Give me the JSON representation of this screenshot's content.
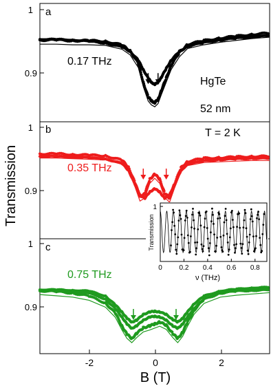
{
  "figure": {
    "ylabel": "Transmission",
    "xlabel": "B (T)",
    "x_ticks": [
      "-2",
      "0",
      "2"
    ],
    "y_tick_labels": {
      "one": "1",
      "point9": "0.9"
    }
  },
  "panels": [
    {
      "letter": "a",
      "freq_label": "0.17 THz",
      "color": "#000000",
      "extra_labels": [
        "HgTe",
        "52 nm"
      ]
    },
    {
      "letter": "b",
      "freq_label": "0.35 THz",
      "color": "#ee1c1c",
      "extra_labels": [
        "T = 2 K"
      ]
    },
    {
      "letter": "c",
      "freq_label": "0.75 THz",
      "color": "#1f9a1f",
      "extra_labels": []
    }
  ],
  "inset": {
    "ylabel": "Transmission",
    "xlabel": "ν (THz)",
    "x_ticks": [
      "0",
      "0.2",
      "0.4",
      "0.6",
      "0.8"
    ],
    "y_ticks": [
      "1"
    ]
  },
  "chart_data": [
    {
      "type": "line",
      "panel": "a",
      "title": "",
      "xlabel": "B (T)",
      "ylabel": "Transmission",
      "xlim": [
        -3.5,
        3.5
      ],
      "ylim": [
        0.85,
        1.0
      ],
      "annotations": [
        "0.17 THz",
        "HgTe",
        "52 nm"
      ],
      "markers": [
        -0.2,
        0.1
      ],
      "x": [
        -3.5,
        -3.0,
        -2.5,
        -2.0,
        -1.5,
        -1.0,
        -0.75,
        -0.5,
        -0.35,
        -0.2,
        -0.1,
        0.0,
        0.1,
        0.2,
        0.35,
        0.5,
        0.75,
        1.0,
        1.5,
        2.0,
        2.5,
        3.0,
        3.5
      ],
      "series": [
        {
          "name": "",
          "values": [
            0.952,
            0.952,
            0.951,
            0.951,
            0.95,
            0.944,
            0.935,
            0.915,
            0.885,
            0.862,
            0.856,
            0.853,
            0.858,
            0.872,
            0.892,
            0.912,
            0.932,
            0.945,
            0.951,
            0.955,
            0.958,
            0.961,
            0.963
          ]
        },
        {
          "name": "",
          "values": [
            0.953,
            0.953,
            0.952,
            0.95,
            0.947,
            0.941,
            0.934,
            0.92,
            0.905,
            0.892,
            0.885,
            0.882,
            0.885,
            0.893,
            0.907,
            0.92,
            0.934,
            0.942,
            0.948,
            0.952,
            0.955,
            0.957,
            0.959
          ]
        }
      ]
    },
    {
      "type": "line",
      "panel": "b",
      "title": "",
      "xlabel": "B (T)",
      "ylabel": "Transmission",
      "xlim": [
        -3.5,
        3.5
      ],
      "ylim": [
        0.86,
        1.0
      ],
      "annotations": [
        "0.35 THz",
        "T = 2 K"
      ],
      "markers": [
        -0.35,
        0.35
      ],
      "x": [
        -3.5,
        -3.0,
        -2.5,
        -2.0,
        -1.5,
        -1.0,
        -0.8,
        -0.6,
        -0.45,
        -0.3,
        -0.15,
        0.0,
        0.15,
        0.3,
        0.45,
        0.6,
        0.8,
        1.0,
        1.5,
        2.0,
        2.5,
        3.0,
        3.5
      ],
      "series": [
        {
          "name": "",
          "values": [
            0.958,
            0.958,
            0.957,
            0.956,
            0.955,
            0.948,
            0.937,
            0.912,
            0.89,
            0.895,
            0.918,
            0.926,
            0.918,
            0.896,
            0.888,
            0.91,
            0.936,
            0.946,
            0.951,
            0.952,
            0.953,
            0.954,
            0.954
          ]
        },
        {
          "name": "",
          "values": [
            0.954,
            0.954,
            0.953,
            0.952,
            0.95,
            0.943,
            0.932,
            0.91,
            0.893,
            0.888,
            0.898,
            0.903,
            0.898,
            0.888,
            0.893,
            0.91,
            0.932,
            0.942,
            0.947,
            0.949,
            0.95,
            0.951,
            0.951
          ]
        }
      ]
    },
    {
      "type": "line",
      "panel": "c",
      "title": "",
      "xlabel": "B (T)",
      "ylabel": "Transmission",
      "xlim": [
        -3.5,
        3.5
      ],
      "ylim": [
        0.86,
        1.0
      ],
      "annotations": [
        "0.75 THz"
      ],
      "markers": [
        -0.65,
        0.65
      ],
      "x": [
        -3.5,
        -3.0,
        -2.5,
        -2.0,
        -1.5,
        -1.2,
        -1.0,
        -0.85,
        -0.7,
        -0.55,
        -0.35,
        -0.15,
        0.0,
        0.15,
        0.35,
        0.55,
        0.7,
        0.85,
        1.0,
        1.2,
        1.5,
        2.0,
        2.5,
        3.0,
        3.5
      ],
      "series": [
        {
          "name": "",
          "values": [
            0.926,
            0.924,
            0.922,
            0.917,
            0.906,
            0.89,
            0.87,
            0.857,
            0.85,
            0.858,
            0.867,
            0.87,
            0.873,
            0.876,
            0.871,
            0.858,
            0.85,
            0.86,
            0.876,
            0.895,
            0.912,
            0.922,
            0.925,
            0.927,
            0.929
          ]
        },
        {
          "name": "",
          "values": [
            0.927,
            0.927,
            0.926,
            0.925,
            0.917,
            0.903,
            0.892,
            0.882,
            0.876,
            0.879,
            0.888,
            0.892,
            0.893,
            0.892,
            0.888,
            0.88,
            0.876,
            0.882,
            0.892,
            0.905,
            0.917,
            0.925,
            0.928,
            0.93,
            0.931
          ]
        },
        {
          "name": "",
          "values": [
            0.925,
            0.925,
            0.924,
            0.922,
            0.912,
            0.897,
            0.884,
            0.873,
            0.866,
            0.87,
            0.879,
            0.884,
            0.885,
            0.884,
            0.879,
            0.87,
            0.866,
            0.873,
            0.884,
            0.898,
            0.912,
            0.922,
            0.925,
            0.926,
            0.927
          ]
        }
      ]
    },
    {
      "type": "line",
      "panel": "inset",
      "title": "",
      "xlabel": "ν (THz)",
      "ylabel": "Transmission",
      "xlim": [
        0.0,
        0.9
      ],
      "ylim": [
        0.0,
        1.1
      ],
      "oscillation": {
        "period_THz": 0.055,
        "min": 0.15,
        "max": 0.98
      }
    }
  ]
}
